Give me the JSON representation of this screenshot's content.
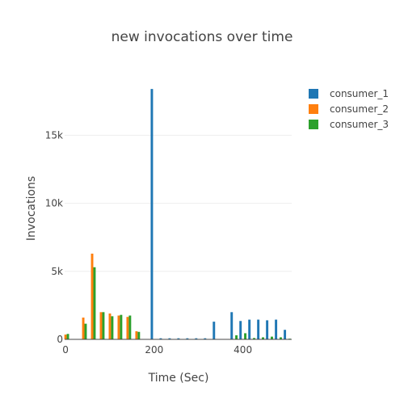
{
  "chart_data": {
    "type": "bar",
    "title": "new invocations over time",
    "xlabel": "Time (Sec)",
    "ylabel": "Invocations",
    "xlim": [
      -2,
      510
    ],
    "ylim": [
      0,
      19000
    ],
    "xticks": [
      0,
      200,
      400
    ],
    "xtick_labels": [
      "0",
      "200",
      "400"
    ],
    "yticks": [
      0,
      5000,
      10000,
      15000
    ],
    "ytick_labels": [
      "0",
      "5k",
      "10k",
      "15k"
    ],
    "grid": true,
    "legend_position": "top-right",
    "x": [
      0,
      20,
      40,
      60,
      80,
      100,
      120,
      140,
      160,
      180,
      200,
      220,
      240,
      260,
      280,
      300,
      320,
      340,
      360,
      380,
      400,
      420,
      440,
      460,
      480,
      500
    ],
    "series": [
      {
        "name": "consumer_1",
        "color": "#1f77b4",
        "values": [
          0,
          0,
          0,
          0,
          0,
          0,
          0,
          0,
          0,
          0,
          18400,
          80,
          80,
          80,
          80,
          80,
          80,
          1300,
          0,
          2000,
          1350,
          1450,
          1450,
          1400,
          1450,
          700
        ]
      },
      {
        "name": "consumer_2",
        "color": "#ff7f0e",
        "values": [
          350,
          0,
          1600,
          6300,
          2000,
          1900,
          1750,
          1650,
          600,
          0,
          0,
          0,
          0,
          0,
          0,
          0,
          0,
          0,
          0,
          0,
          0,
          0,
          0,
          0,
          0,
          0
        ]
      },
      {
        "name": "consumer_3",
        "color": "#2ca02c",
        "values": [
          400,
          0,
          1150,
          5300,
          2000,
          1700,
          1800,
          1750,
          550,
          0,
          0,
          0,
          0,
          0,
          0,
          0,
          0,
          0,
          0,
          300,
          450,
          100,
          150,
          200,
          150,
          50
        ]
      }
    ]
  }
}
